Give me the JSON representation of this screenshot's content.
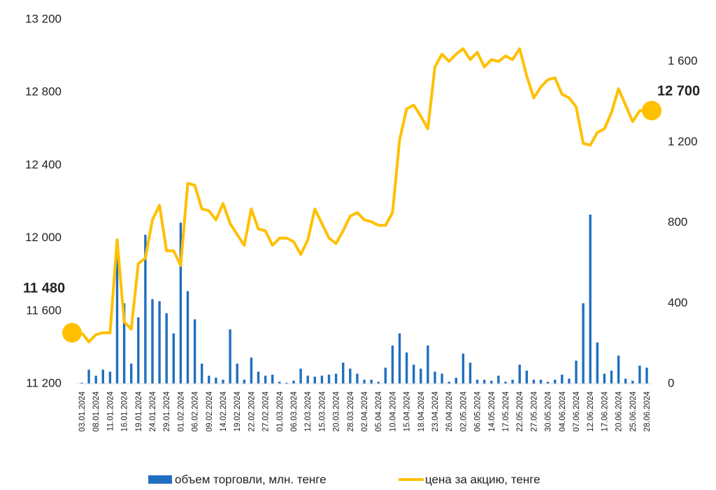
{
  "chart_data": {
    "type": "bar-line",
    "categories": [
      "03.01.2024",
      null,
      "08.01.2024",
      null,
      "11.01.2024",
      null,
      "16.01.2024",
      null,
      "19.01.2024",
      null,
      "24.01.2024",
      null,
      "29.01.2024",
      null,
      "01.02.2024",
      null,
      "06.02.2024",
      null,
      "09.02.2024",
      null,
      "14.02.2024",
      null,
      "19.02.2024",
      null,
      "22.02.2024",
      null,
      "27.02.2024",
      null,
      "01.03.2024",
      null,
      "06.03.2024",
      null,
      "12.03.2024",
      null,
      "15.03.2024",
      null,
      "20.03.2024",
      null,
      "28.03.2024",
      null,
      "02.04.2024",
      null,
      "05.04.2024",
      null,
      "10.04.2024",
      null,
      "15.04.2024",
      null,
      "18.04.2024",
      null,
      "23.04.2024",
      null,
      "26.04.2024",
      null,
      "02.05.2024",
      null,
      "06.05.2024",
      null,
      "14.05.2024",
      null,
      "17.05.2024",
      null,
      "22.05.2024",
      null,
      "27.05.2024",
      null,
      "30.05.2024",
      null,
      "04.06.2024",
      null,
      "07.06.2024",
      null,
      "12.06.2024",
      null,
      "17.06.2024",
      null,
      "20.06.2024",
      null,
      "25.06.2024",
      null,
      "28.06.2024"
    ],
    "series": [
      {
        "name": "объем торговли, млн. тенге",
        "kind": "bar",
        "axis": "y2",
        "color": "#1f6fc0",
        "values": [
          5,
          70,
          40,
          70,
          60,
          720,
          400,
          100,
          330,
          740,
          420,
          410,
          350,
          250,
          800,
          460,
          320,
          100,
          40,
          30,
          20,
          270,
          100,
          20,
          130,
          60,
          40,
          45,
          10,
          5,
          15,
          75,
          40,
          35,
          40,
          45,
          50,
          105,
          75,
          50,
          20,
          20,
          10,
          80,
          190,
          250,
          155,
          95,
          75,
          190,
          60,
          50,
          10,
          30,
          150,
          105,
          20,
          20,
          15,
          40,
          10,
          20,
          95,
          65,
          20,
          20,
          10,
          20,
          45,
          25,
          115,
          400,
          840,
          205,
          50,
          65,
          140,
          25,
          15,
          90,
          80
        ]
      },
      {
        "name": "цена за акцию, тенге",
        "kind": "line",
        "axis": "y",
        "color": "#ffc000",
        "values": [
          11480,
          11430,
          11470,
          11480,
          11480,
          11990,
          11540,
          11500,
          11860,
          11890,
          12100,
          12180,
          11930,
          11930,
          11850,
          12300,
          12290,
          12160,
          12150,
          12100,
          12190,
          12080,
          12020,
          11960,
          12160,
          12050,
          12040,
          11960,
          12000,
          12000,
          11980,
          11910,
          11990,
          12160,
          12080,
          12000,
          11970,
          12040,
          12120,
          12140,
          12100,
          12090,
          12070,
          12070,
          12140,
          12540,
          12710,
          12730,
          12670,
          12600,
          12940,
          13010,
          12970,
          13010,
          13040,
          12980,
          13020,
          12940,
          12980,
          12970,
          13000,
          12980,
          13040,
          12890,
          12770,
          12830,
          12870,
          12880,
          12790,
          12770,
          12720,
          12520,
          12510,
          12580,
          12600,
          12690,
          12820,
          12730,
          12640,
          12700,
          12700
        ],
        "value_labels": [
          "11 480",
          null,
          null,
          null,
          null,
          null,
          null,
          null,
          null,
          null,
          null,
          null,
          null,
          null,
          null,
          null,
          null,
          null,
          null,
          null,
          null,
          null,
          null,
          null,
          null,
          null,
          null,
          null,
          null,
          null,
          null,
          null,
          null,
          null,
          null,
          null,
          null,
          null,
          null,
          null,
          null,
          null,
          null,
          null,
          null,
          null,
          null,
          null,
          null,
          null,
          null,
          null,
          null,
          null,
          null,
          null,
          null,
          null,
          null,
          null,
          null,
          null,
          null,
          null,
          null,
          null,
          null,
          null,
          null,
          null,
          null,
          null,
          null,
          null,
          null,
          null,
          null,
          null,
          null,
          null,
          "12 700"
        ]
      }
    ],
    "ylim": [
      11200,
      13200
    ],
    "yticks": [
      {
        "value": 11200,
        "label": "11 200"
      },
      {
        "value": 11600,
        "label": "11 600"
      },
      {
        "value": 12000,
        "label": "12 000"
      },
      {
        "value": 12400,
        "label": "12 400"
      },
      {
        "value": 12800,
        "label": "12 800"
      },
      {
        "value": 13200,
        "label": "13 200"
      }
    ],
    "y2lim": [
      0,
      1809
    ],
    "y2ticks": [
      0,
      400,
      800,
      {
        "value": 1200,
        "label": "1 200"
      },
      {
        "value": 1600,
        "label": "1 600"
      }
    ],
    "legend": "bottom"
  }
}
